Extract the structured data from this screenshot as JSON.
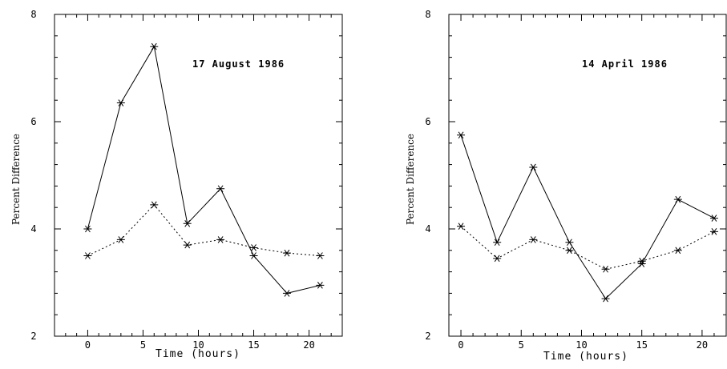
{
  "chart_data": [
    {
      "type": "line",
      "annotation": "17 August 1986",
      "xlabel": "Time (hours)",
      "ylabel": "Percent Difference",
      "xlim": [
        -3,
        23
      ],
      "ylim": [
        2,
        8
      ],
      "xticks": [
        0,
        5,
        10,
        15,
        20
      ],
      "yticks": [
        2,
        4,
        6,
        8
      ],
      "grid": false,
      "x": [
        0,
        3,
        6,
        9,
        12,
        15,
        18,
        21
      ],
      "series": [
        {
          "style": "solid",
          "color": "#000000",
          "marker": "star",
          "values": [
            4.0,
            6.35,
            7.4,
            4.1,
            4.75,
            3.5,
            2.8,
            2.95
          ]
        },
        {
          "style": "dotted",
          "color": "#000000",
          "marker": "star",
          "values": [
            3.5,
            3.8,
            4.45,
            3.7,
            3.8,
            3.65,
            3.55,
            3.5
          ]
        }
      ]
    },
    {
      "type": "line",
      "annotation": "14 April 1986",
      "xlabel": "Time (hours)",
      "ylabel": "Percent Difference",
      "xlim": [
        -1,
        22
      ],
      "ylim": [
        2,
        8
      ],
      "xticks": [
        0,
        5,
        10,
        15,
        20
      ],
      "yticks": [
        2,
        4,
        6,
        8
      ],
      "grid": false,
      "x": [
        0,
        3,
        6,
        9,
        12,
        15,
        18,
        21
      ],
      "series": [
        {
          "style": "solid",
          "color": "#000000",
          "marker": "star",
          "values": [
            5.75,
            3.75,
            5.15,
            3.75,
            2.7,
            3.35,
            4.55,
            4.2
          ]
        },
        {
          "style": "dotted",
          "color": "#000000",
          "marker": "star",
          "values": [
            4.05,
            3.45,
            3.8,
            3.6,
            3.25,
            3.4,
            3.6,
            3.95
          ]
        }
      ]
    }
  ]
}
